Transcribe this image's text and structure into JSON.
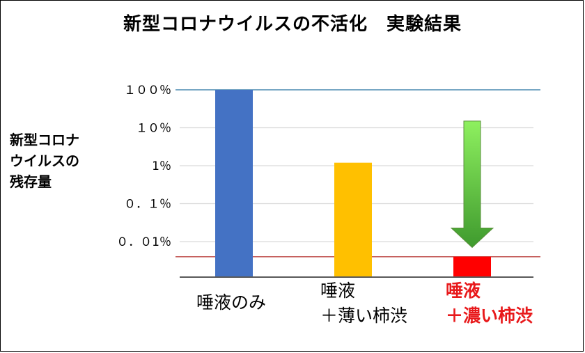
{
  "chart_data": {
    "type": "bar",
    "title": "新型コロナウイルスの不活化　実験結果",
    "ylabel_lines": [
      "新型コロナ",
      "ウイルスの",
      "残存量"
    ],
    "yscale": "log",
    "ylim": [
      0.001,
      100
    ],
    "yticks": [
      {
        "value": 100,
        "label": "１００％"
      },
      {
        "value": 10,
        "label": "１０％"
      },
      {
        "value": 1,
        "label": "1％"
      },
      {
        "value": 0.1,
        "label": "０．１％"
      },
      {
        "value": 0.01,
        "label": "０．０1％"
      }
    ],
    "categories": [
      {
        "lines": [
          "唾液のみ"
        ]
      },
      {
        "lines": [
          "唾液",
          "＋薄い柿渋"
        ]
      },
      {
        "lines": [
          "唾液",
          "＋濃い柿渋"
        ],
        "emphasized": true
      }
    ],
    "values": [
      100,
      1.2,
      0.004
    ],
    "colors": [
      "#4472c4",
      "#ffc000",
      "#ff0000"
    ],
    "reference_lines": [
      {
        "value": 100,
        "color": "#4a8ab0"
      },
      {
        "value": 0.004,
        "color": "#c0504d"
      }
    ],
    "annotation": {
      "type": "arrow",
      "category": 2,
      "from_value": 15,
      "to_value": 0.007,
      "color_top": "#8ef05f",
      "color_bottom": "#3f9a2e"
    }
  }
}
